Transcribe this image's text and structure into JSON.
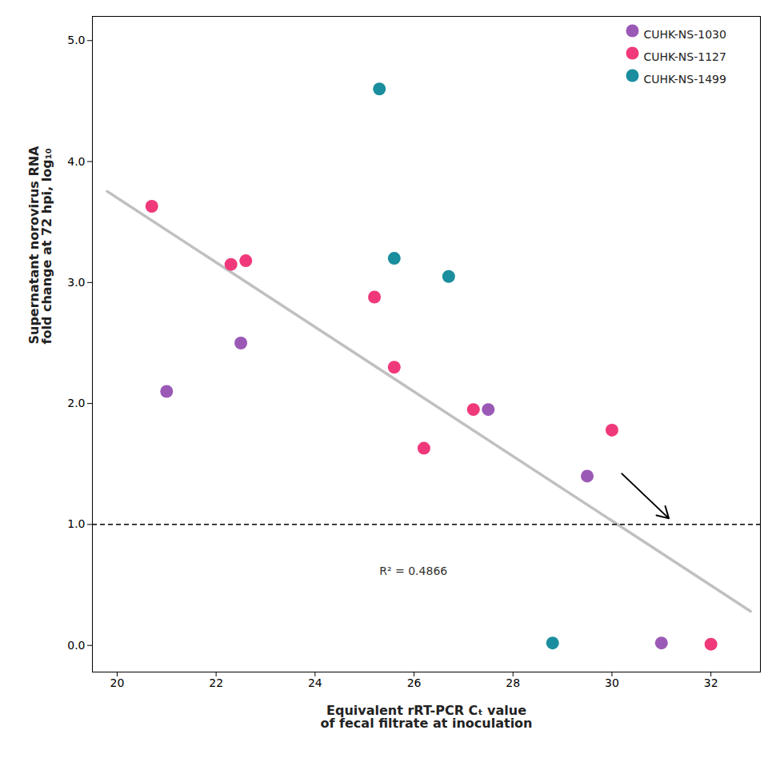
{
  "chart_data": {
    "type": "scatter",
    "x_label": "Equivalent rRT-PCR Cₜ value\nof fecal filtrate at inoculation",
    "y_label": "Supernatant norovirus RNA\nfold change at 72 hpi, log₁₀",
    "series": [
      {
        "name": "CUHK-NS-1030",
        "color": "#9b59b6",
        "x": [
          21.0,
          22.5,
          27.5,
          29.5,
          31.0
        ],
        "y": [
          2.1,
          2.5,
          1.95,
          1.4,
          0.02
        ]
      },
      {
        "name": "CUHK-NS-1127",
        "color": "#f0397a",
        "x": [
          20.7,
          22.3,
          22.6,
          25.2,
          25.6,
          26.2,
          27.2,
          30.0,
          32.0
        ],
        "y": [
          3.63,
          3.15,
          3.18,
          2.88,
          2.3,
          1.63,
          1.95,
          1.78,
          0.01
        ]
      },
      {
        "name": "CUHK-NS-1499",
        "color": "#1a8e9e",
        "x": [
          25.3,
          25.6,
          26.7,
          28.8
        ],
        "y": [
          4.6,
          3.2,
          3.05,
          0.02
        ]
      }
    ],
    "regression": {
      "x": [
        19.8,
        32.8
      ],
      "y": [
        3.7534,
        0.2824
      ],
      "color": "#c0c0c0"
    },
    "hline": {
      "y": 1.0,
      "color": "#222222",
      "line_style": "dashed"
    },
    "annotations": [
      {
        "text": "R² = 0.4866",
        "x": 25.3,
        "y": 0.58
      }
    ],
    "arrows": [
      {
        "x1": 30.2,
        "y1": 1.42,
        "x2": 31.15,
        "y2": 1.05
      }
    ],
    "xlim": [
      19.5,
      33.0
    ],
    "ylim": [
      -0.22,
      5.2
    ],
    "xticks": [
      20,
      22,
      24,
      26,
      28,
      30,
      32
    ],
    "yticks": [
      0,
      1,
      2,
      3,
      4,
      5
    ],
    "grid": false,
    "legend": "upper right"
  }
}
